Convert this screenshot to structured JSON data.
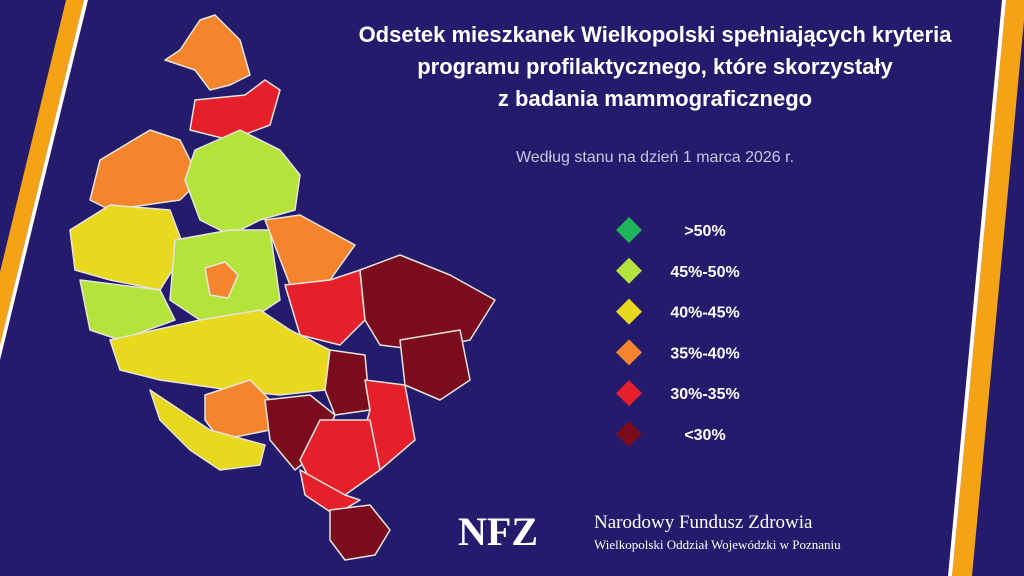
{
  "header": {
    "title_lines": [
      "Odsetek mieszkanek Wielkopolski spełniających kryteria",
      "programu profilaktycznego, które skorzystały",
      "z badania mammograficznego"
    ],
    "subtitle": "Według stanu na dzień 1 marca 2026 r."
  },
  "legend": {
    "items": [
      {
        "label": ">50%",
        "color": "#1fb45a"
      },
      {
        "label": "45%-50%",
        "color": "#b4e43c"
      },
      {
        "label": "40%-45%",
        "color": "#e9d91e"
      },
      {
        "label": "35%-40%",
        "color": "#f5852c"
      },
      {
        "label": "30%-35%",
        "color": "#e5202b"
      },
      {
        "label": "<30%",
        "color": "#7a0c1e"
      }
    ]
  },
  "footer": {
    "logo": "NFZ",
    "organization": "Narodowy Fundusz Zdrowia",
    "branch": "Wielkopolski Oddział Wojewódzki w Poznaniu"
  }
}
